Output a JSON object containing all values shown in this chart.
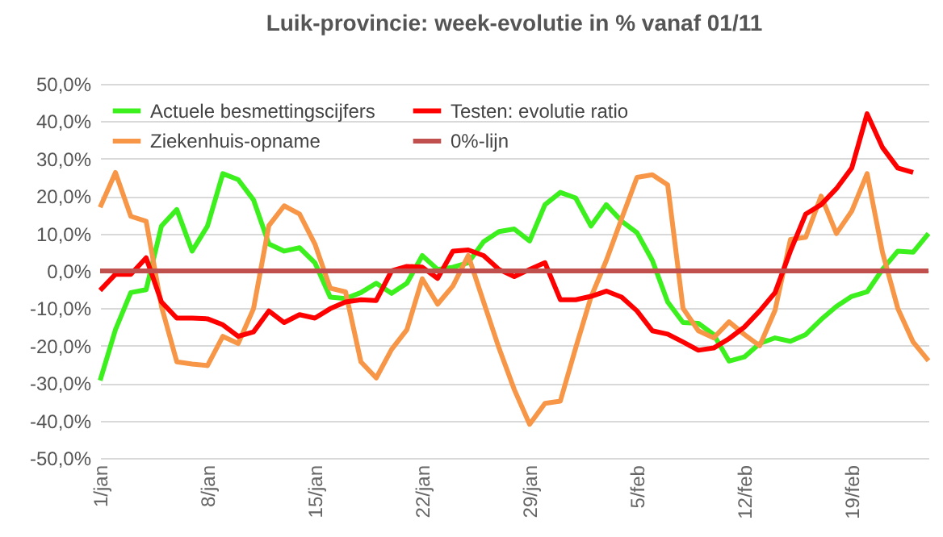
{
  "chart_data": {
    "type": "line",
    "title": "Luik-provincie: week-evolutie in %  vanaf 01/11",
    "categories": [
      "1/jan",
      null,
      null,
      null,
      null,
      null,
      null,
      "8/jan",
      null,
      null,
      null,
      null,
      null,
      null,
      "15/jan",
      null,
      null,
      null,
      null,
      null,
      null,
      "22/jan",
      null,
      null,
      null,
      null,
      null,
      null,
      "29/jan",
      null,
      null,
      null,
      null,
      null,
      null,
      "5/feb",
      null,
      null,
      null,
      null,
      null,
      null,
      "12/feb",
      null,
      null,
      null,
      null,
      null,
      null,
      "19/feb",
      null,
      null,
      null,
      null,
      null
    ],
    "series": [
      {
        "name": "Actuele besmettingscijfers",
        "color": "#3cf01e",
        "values": [
          -29.3,
          -15.7,
          -5.8,
          -5,
          12,
          16.4,
          5.3,
          12,
          26,
          24.4,
          19,
          7.2,
          5.3,
          6.2,
          2.2,
          -7,
          -7.4,
          -5.8,
          -3.3,
          -6,
          -3.3,
          4.1,
          0.4,
          1,
          2.2,
          7.8,
          10.5,
          11.2,
          8,
          17.7,
          21,
          19.5,
          12,
          17.7,
          13.3,
          10.2,
          2.8,
          -8.3,
          -13.8,
          -14,
          -17,
          -24.1,
          -23,
          -19.4,
          -17.9,
          -18.8,
          -17,
          -13,
          -9.5,
          -6.8,
          -5.6,
          0.4,
          5.3,
          5,
          10
        ]
      },
      {
        "name": "Ziekenhuis-opname",
        "color": "#f79646",
        "values": [
          17,
          26.3,
          14.6,
          13.3,
          -9.5,
          -24.3,
          -24.9,
          -25.3,
          -17.5,
          -19.4,
          -10.1,
          12.1,
          17.4,
          15.2,
          7.2,
          -4.6,
          -5.6,
          -24.3,
          -28.6,
          -21,
          -15.7,
          -2.1,
          -8.9,
          -4,
          4.1,
          -8.3,
          -20.6,
          -31.7,
          -41,
          -35.4,
          -34.8,
          -20.6,
          -7,
          2.8,
          14,
          25,
          25.7,
          23,
          -10,
          -16,
          -17.9,
          -13.6,
          -17,
          -20,
          -10.5,
          8.4,
          9,
          20,
          10,
          16,
          26,
          5,
          -10,
          -19,
          -24
        ]
      },
      {
        "name": "Testen: evolutie ratio",
        "color": "#ff0000",
        "values": [
          -5.2,
          -0.9,
          -0.9,
          3.5,
          -8.3,
          -12.6,
          -12.6,
          -12.8,
          -14.4,
          -17.5,
          -16.3,
          -10.7,
          -13.8,
          -11.7,
          -12.6,
          -10.1,
          -8.3,
          -7.7,
          -7.9,
          0,
          1.2,
          1,
          -2,
          5.3,
          5.6,
          4.1,
          0.4,
          -1.5,
          0.4,
          2.2,
          -7.7,
          -7.7,
          -6.8,
          -5.4,
          -7,
          -10.7,
          -16,
          -16.9,
          -19,
          -21.2,
          -20.6,
          -18.1,
          -15,
          -10.7,
          -5.8,
          5.3,
          15.2,
          17.7,
          22,
          27.5,
          42,
          33,
          27.5,
          26.3,
          null
        ]
      },
      {
        "name": "0%-lijn",
        "color": "#c0504d",
        "values": [
          0,
          0,
          0,
          0,
          0,
          0,
          0,
          0,
          0,
          0,
          0,
          0,
          0,
          0,
          0,
          0,
          0,
          0,
          0,
          0,
          0,
          0,
          0,
          0,
          0,
          0,
          0,
          0,
          0,
          0,
          0,
          0,
          0,
          0,
          0,
          0,
          0,
          0,
          0,
          0,
          0,
          0,
          0,
          0,
          0,
          0,
          0,
          0,
          0,
          0,
          0,
          0,
          0,
          0,
          0
        ]
      }
    ],
    "ylim": [
      -50,
      50
    ],
    "yticks": [
      {
        "value": 50,
        "label": "50,0%"
      },
      {
        "value": 40,
        "label": "40,0%"
      },
      {
        "value": 30,
        "label": "30,0%"
      },
      {
        "value": 20,
        "label": "20,0%"
      },
      {
        "value": 10,
        "label": "10,0%"
      },
      {
        "value": 0,
        "label": "0,0%"
      },
      {
        "value": -10,
        "label": "-10,0%"
      },
      {
        "value": -20,
        "label": "-20,0%"
      },
      {
        "value": -30,
        "label": "-30,0%"
      },
      {
        "value": -40,
        "label": "-40,0%"
      },
      {
        "value": -50,
        "label": "-50,0%"
      }
    ],
    "grid": "y",
    "legend": "top left"
  }
}
